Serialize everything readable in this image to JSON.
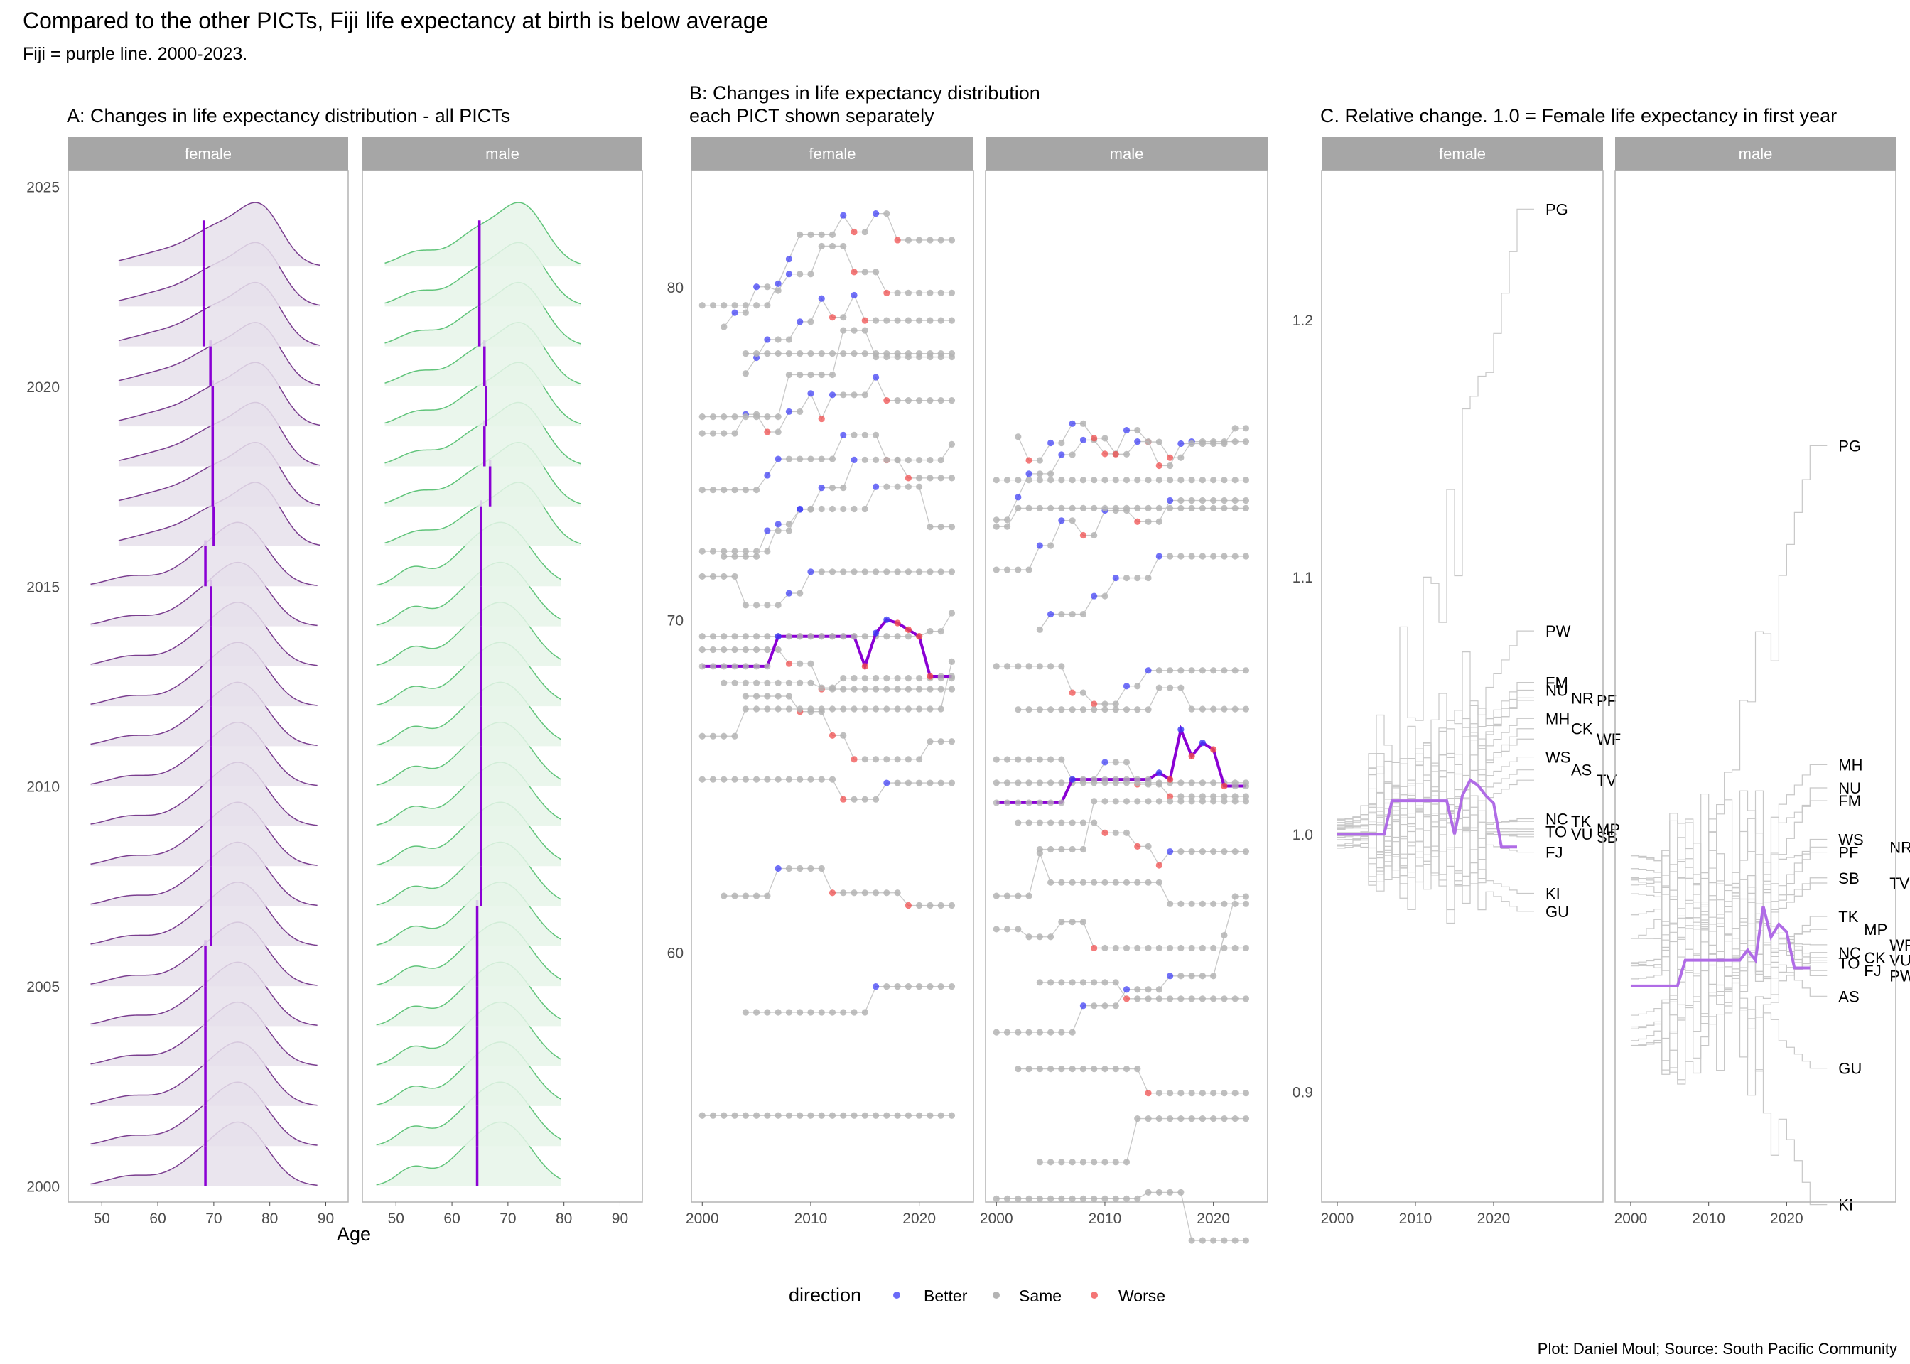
{
  "title": "Compared to the other PICTs, Fiji life expectancy at birth is below average",
  "subtitle": "Fiji = purple line. 2000-2023.",
  "caption": "Plot: Daniel Moul; Source: South Pacific Community",
  "legend": {
    "title": "direction",
    "items": [
      {
        "label": "Better",
        "color": "#3a3af5"
      },
      {
        "label": "Same",
        "color": "#b4b4b4"
      },
      {
        "label": "Worse",
        "color": "#f04848"
      }
    ]
  },
  "colors": {
    "fiji": "#8a00d4",
    "fiji_c": "#b06ce6",
    "female_ridge_fill": "#e6e0eb",
    "female_ridge_line": "#7a3d8f",
    "male_ridge_fill": "#e6f5e9",
    "male_ridge_line": "#60c47a",
    "strip": "#a6a6a6",
    "grid": "#ebebeb"
  },
  "chart_data": [
    {
      "id": "A",
      "type": "ridgeline",
      "title": "A: Changes in life expectancy distribution - all PICTs",
      "xlabel": "Age",
      "xlim": [
        44,
        94
      ],
      "xticks": [
        50,
        60,
        70,
        80,
        90
      ],
      "ylim": [
        1999.6,
        2025.4
      ],
      "yticks": [
        2000,
        2005,
        2010,
        2015,
        2020,
        2025
      ],
      "facets": [
        "female",
        "male"
      ],
      "years": [
        2000,
        2001,
        2002,
        2003,
        2004,
        2005,
        2006,
        2007,
        2008,
        2009,
        2010,
        2011,
        2012,
        2013,
        2014,
        2015,
        2016,
        2017,
        2018,
        2019,
        2020,
        2021,
        2022,
        2023
      ],
      "fiji_median": {
        "female": [
          68.5,
          68.5,
          68.5,
          68.5,
          68.5,
          68.5,
          69.5,
          69.5,
          69.5,
          69.5,
          69.5,
          69.5,
          69.5,
          69.5,
          69.5,
          68.5,
          70.0,
          69.8,
          69.8,
          69.8,
          69.4,
          68.2,
          68.2,
          68.2
        ],
        "male": [
          64.5,
          64.5,
          64.5,
          64.5,
          64.5,
          64.5,
          64.5,
          65.2,
          65.2,
          65.2,
          65.2,
          65.2,
          65.2,
          65.2,
          65.2,
          65.2,
          65.2,
          66.8,
          65.8,
          66.1,
          65.8,
          64.9,
          64.9,
          64.9
        ]
      }
    },
    {
      "id": "B",
      "type": "line+scatter",
      "title": "B: Changes in life expectancy distribution\neach PICT shown separately",
      "xlim": [
        1999,
        2025
      ],
      "xticks": [
        2000,
        2010,
        2020
      ],
      "ylim": [
        52.5,
        83.5
      ],
      "yticks": [
        60,
        70,
        80
      ],
      "facets": [
        "female",
        "male"
      ],
      "fiji": {
        "female": {
          "years": [
            2000,
            2001,
            2002,
            2003,
            2004,
            2005,
            2006,
            2007,
            2008,
            2009,
            2010,
            2011,
            2012,
            2013,
            2014,
            2015,
            2016,
            2017,
            2018,
            2019,
            2020,
            2021,
            2022,
            2023
          ],
          "values": [
            68.6,
            68.6,
            68.6,
            68.6,
            68.6,
            68.6,
            68.6,
            69.5,
            69.5,
            69.5,
            69.5,
            69.5,
            69.5,
            69.5,
            69.5,
            68.6,
            69.6,
            70.0,
            69.9,
            69.7,
            69.5,
            68.3,
            68.3,
            68.3
          ]
        },
        "male": {
          "years": [
            2000,
            2001,
            2002,
            2003,
            2004,
            2005,
            2006,
            2007,
            2008,
            2009,
            2010,
            2011,
            2012,
            2013,
            2014,
            2015,
            2016,
            2017,
            2018,
            2019,
            2020,
            2021,
            2022,
            2023
          ],
          "values": [
            64.5,
            64.5,
            64.5,
            64.5,
            64.5,
            64.5,
            64.5,
            65.2,
            65.2,
            65.2,
            65.2,
            65.2,
            65.2,
            65.2,
            65.2,
            65.4,
            65.2,
            66.7,
            65.9,
            66.3,
            66.1,
            65.0,
            65.0,
            65.0
          ]
        }
      }
    },
    {
      "id": "C",
      "type": "line",
      "title": "C. Relative change. 1.0 = Female life expectancy in first year",
      "xlim": [
        1998,
        2034
      ],
      "xticks": [
        2000,
        2010,
        2020
      ],
      "ylim": [
        0.857,
        1.258
      ],
      "yticks": [
        0.9,
        1.0,
        1.1,
        1.2
      ],
      "facets": [
        "female",
        "male"
      ],
      "fiji": {
        "female": {
          "years": [
            2000,
            2001,
            2002,
            2003,
            2004,
            2005,
            2006,
            2007,
            2008,
            2009,
            2010,
            2011,
            2012,
            2013,
            2014,
            2015,
            2016,
            2017,
            2018,
            2019,
            2020,
            2021,
            2022,
            2023
          ],
          "values": [
            1.0,
            1.0,
            1.0,
            1.0,
            1.0,
            1.0,
            1.0,
            1.013,
            1.013,
            1.013,
            1.013,
            1.013,
            1.013,
            1.013,
            1.013,
            1.0,
            1.015,
            1.021,
            1.019,
            1.015,
            1.012,
            0.995,
            0.995,
            0.995
          ]
        },
        "male": {
          "years": [
            2000,
            2001,
            2002,
            2003,
            2004,
            2005,
            2006,
            2007,
            2008,
            2009,
            2010,
            2011,
            2012,
            2013,
            2014,
            2015,
            2016,
            2017,
            2018,
            2019,
            2020,
            2021,
            2022,
            2023
          ],
          "values": [
            0.941,
            0.941,
            0.941,
            0.941,
            0.941,
            0.941,
            0.941,
            0.951,
            0.951,
            0.951,
            0.951,
            0.951,
            0.951,
            0.951,
            0.951,
            0.955,
            0.951,
            0.972,
            0.96,
            0.965,
            0.962,
            0.948,
            0.948,
            0.948
          ]
        }
      },
      "labels": {
        "female": [
          {
            "text": "PG",
            "y": 1.243
          },
          {
            "text": "PW",
            "y": 1.079
          },
          {
            "text": "FM",
            "y": 1.059
          },
          {
            "text": "NU",
            "y": 1.056
          },
          {
            "text": "NR",
            "y": 1.053
          },
          {
            "text": "PF",
            "y": 1.052
          },
          {
            "text": "MH",
            "y": 1.045
          },
          {
            "text": "CK",
            "y": 1.041
          },
          {
            "text": "WF",
            "y": 1.037
          },
          {
            "text": "WS",
            "y": 1.03
          },
          {
            "text": "AS",
            "y": 1.025
          },
          {
            "text": "TV",
            "y": 1.021
          },
          {
            "text": "NC",
            "y": 1.006
          },
          {
            "text": "TK",
            "y": 1.005
          },
          {
            "text": "MP",
            "y": 1.002
          },
          {
            "text": "TO",
            "y": 1.001
          },
          {
            "text": "VU",
            "y": 1.0
          },
          {
            "text": "SB",
            "y": 0.999
          },
          {
            "text": "FJ",
            "y": 0.993
          },
          {
            "text": "KI",
            "y": 0.977
          },
          {
            "text": "GU",
            "y": 0.97
          }
        ],
        "male": [
          {
            "text": "PG",
            "y": 1.151
          },
          {
            "text": "MH",
            "y": 1.027
          },
          {
            "text": "NU",
            "y": 1.018
          },
          {
            "text": "FM",
            "y": 1.013
          },
          {
            "text": "WS",
            "y": 0.998
          },
          {
            "text": "NR",
            "y": 0.995
          },
          {
            "text": "PF",
            "y": 0.993
          },
          {
            "text": "SB",
            "y": 0.983
          },
          {
            "text": "TV",
            "y": 0.981
          },
          {
            "text": "TK",
            "y": 0.968
          },
          {
            "text": "MP",
            "y": 0.963
          },
          {
            "text": "WF",
            "y": 0.957
          },
          {
            "text": "NC",
            "y": 0.954
          },
          {
            "text": "CK",
            "y": 0.952
          },
          {
            "text": "VU",
            "y": 0.951
          },
          {
            "text": "TO",
            "y": 0.95
          },
          {
            "text": "FJ",
            "y": 0.947
          },
          {
            "text": "PW",
            "y": 0.945
          },
          {
            "text": "AS",
            "y": 0.937
          },
          {
            "text": "GU",
            "y": 0.909
          },
          {
            "text": "KI",
            "y": 0.856
          }
        ]
      }
    }
  ]
}
